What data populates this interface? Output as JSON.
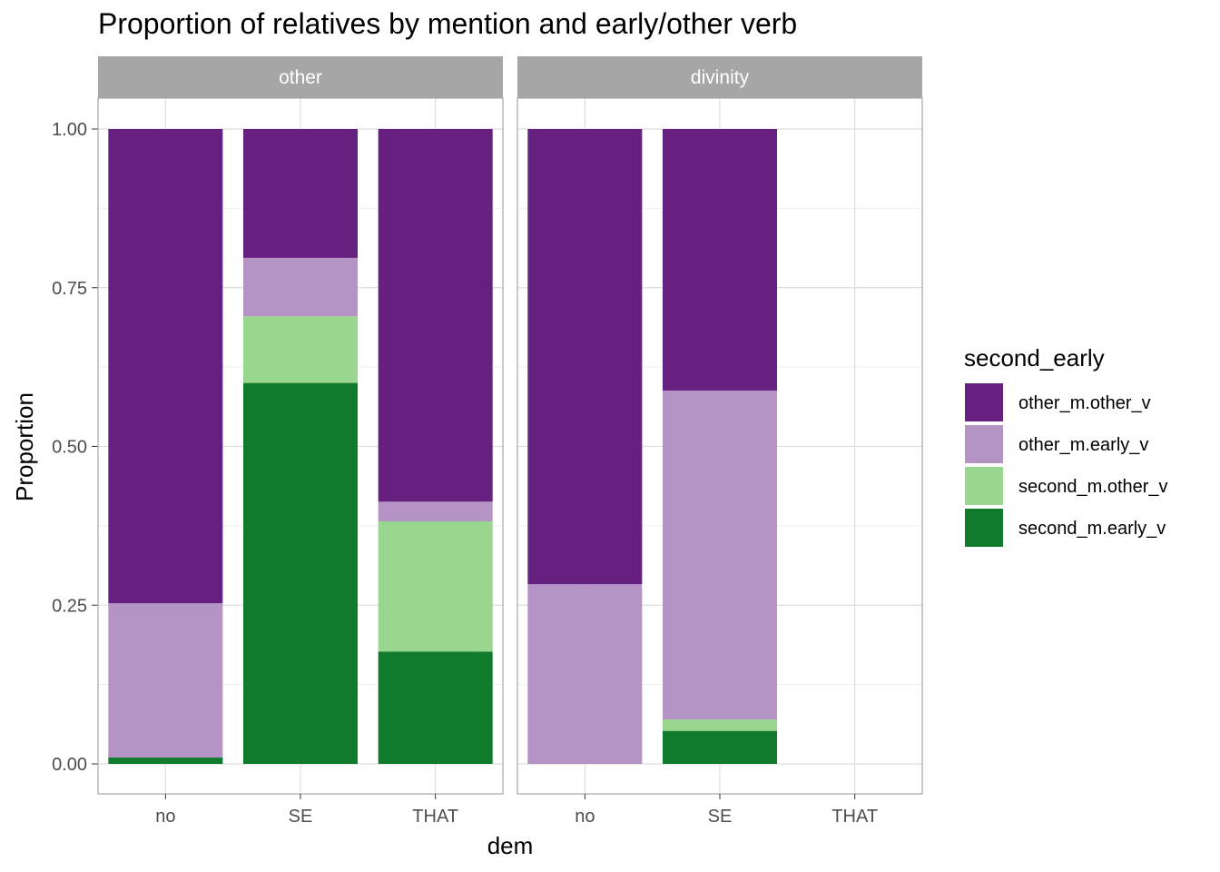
{
  "chart_data": {
    "type": "bar",
    "stacked": true,
    "title": "Proportion of relatives by mention and early/other verb",
    "xlabel": "dem",
    "ylabel": "Proportion",
    "ylim": [
      0,
      1
    ],
    "yticks": [
      "0.00",
      "0.25",
      "0.50",
      "0.75",
      "1.00"
    ],
    "yticks_values": [
      0,
      0.25,
      0.5,
      0.75,
      1.0
    ],
    "grid": true,
    "legend": {
      "title": "second_early",
      "placement": "right",
      "entries": [
        {
          "name": "other_m.other_v",
          "color": "#652080"
        },
        {
          "name": "other_m.early_v",
          "color": "#b594c5"
        },
        {
          "name": "second_m.other_v",
          "color": "#98d78d"
        },
        {
          "name": "second_m.early_v",
          "color": "#117b2d"
        }
      ]
    },
    "categories": [
      "no",
      "SE",
      "THAT"
    ],
    "panels": [
      {
        "label": "other",
        "bars": [
          {
            "category": "no",
            "segments": [
              {
                "series": "second_m.early_v",
                "value": 0.01
              },
              {
                "series": "second_m.other_v",
                "value": 0.0
              },
              {
                "series": "other_m.early_v",
                "value": 0.243
              },
              {
                "series": "other_m.other_v",
                "value": 0.747
              }
            ]
          },
          {
            "category": "SE",
            "segments": [
              {
                "series": "second_m.early_v",
                "value": 0.6
              },
              {
                "series": "second_m.other_v",
                "value": 0.105
              },
              {
                "series": "other_m.early_v",
                "value": 0.092
              },
              {
                "series": "other_m.other_v",
                "value": 0.203
              }
            ]
          },
          {
            "category": "THAT",
            "segments": [
              {
                "series": "second_m.early_v",
                "value": 0.177
              },
              {
                "series": "second_m.other_v",
                "value": 0.205
              },
              {
                "series": "other_m.early_v",
                "value": 0.031
              },
              {
                "series": "other_m.other_v",
                "value": 0.587
              }
            ]
          }
        ]
      },
      {
        "label": "divinity",
        "bars": [
          {
            "category": "no",
            "segments": [
              {
                "series": "second_m.early_v",
                "value": 0.0
              },
              {
                "series": "second_m.other_v",
                "value": 0.0
              },
              {
                "series": "other_m.early_v",
                "value": 0.283
              },
              {
                "series": "other_m.other_v",
                "value": 0.717
              }
            ]
          },
          {
            "category": "SE",
            "segments": [
              {
                "series": "second_m.early_v",
                "value": 0.052
              },
              {
                "series": "second_m.other_v",
                "value": 0.018
              },
              {
                "series": "other_m.early_v",
                "value": 0.518
              },
              {
                "series": "other_m.other_v",
                "value": 0.412
              }
            ]
          }
        ]
      }
    ]
  }
}
